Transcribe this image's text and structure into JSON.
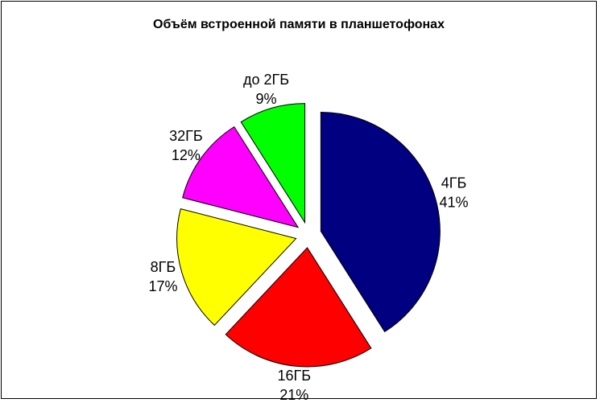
{
  "chart_data": {
    "type": "pie",
    "title": "Объём встроенной памяти в планшетофонах",
    "categories": [
      "4ГБ",
      "16ГБ",
      "8ГБ",
      "32ГБ",
      "до 2ГБ"
    ],
    "values": [
      41,
      21,
      17,
      12,
      9
    ],
    "value_labels": [
      "41%",
      "21%",
      "17%",
      "12%",
      "9%"
    ],
    "colors": [
      "#000080",
      "#ff0000",
      "#ffff00",
      "#ff00ff",
      "#00ff00"
    ]
  }
}
